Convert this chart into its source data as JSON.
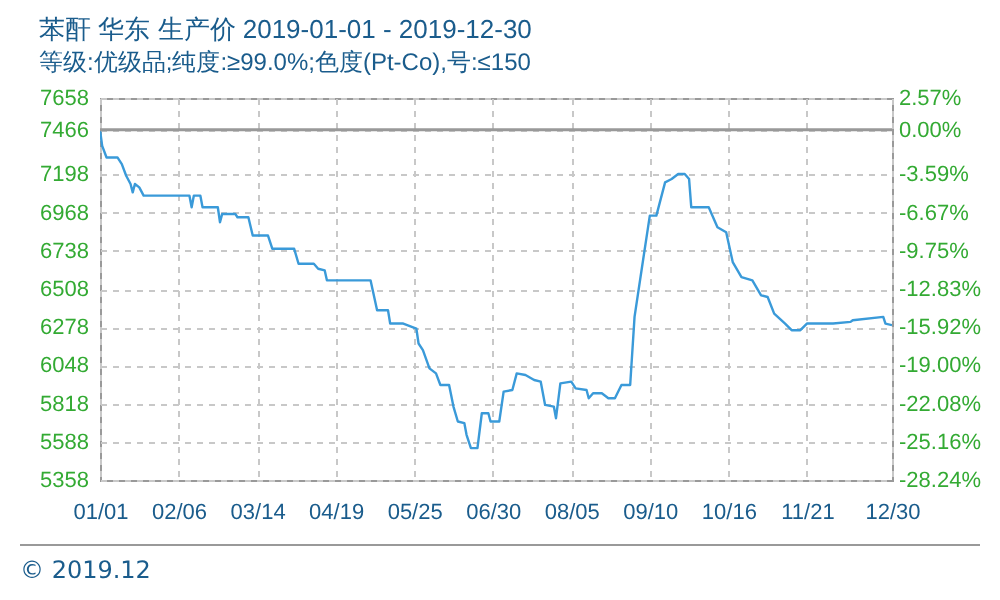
{
  "chart_data": {
    "type": "line",
    "title": "苯酐 华东 生产价 2019-01-01 - 2019-12-30",
    "subtitle": "等级:优级品;纯度:≥99.0%;色度(Pt-Co),号:≤150",
    "annotations": [
      "© 2019.12"
    ],
    "x": [
      "2019-01-01",
      "2019-01-02",
      "2019-01-04",
      "2019-01-09",
      "2019-01-11",
      "2019-01-13",
      "2019-01-15",
      "2019-01-16",
      "2019-01-17",
      "2019-01-19",
      "2019-01-21",
      "2019-02-11",
      "2019-02-12",
      "2019-02-13",
      "2019-02-16",
      "2019-02-17",
      "2019-02-24",
      "2019-02-25",
      "2019-02-26",
      "2019-03-04",
      "2019-03-05",
      "2019-03-10",
      "2019-03-12",
      "2019-03-19",
      "2019-03-21",
      "2019-03-31",
      "2019-04-02",
      "2019-04-09",
      "2019-04-11",
      "2019-04-14",
      "2019-04-15",
      "2019-05-05",
      "2019-05-06",
      "2019-05-08",
      "2019-05-13",
      "2019-05-14",
      "2019-05-20",
      "2019-05-26",
      "2019-05-27",
      "2019-05-29",
      "2019-06-01",
      "2019-06-04",
      "2019-06-06",
      "2019-06-10",
      "2019-06-12",
      "2019-06-14",
      "2019-06-17",
      "2019-06-18",
      "2019-06-20",
      "2019-06-23",
      "2019-06-25",
      "2019-06-28",
      "2019-06-29",
      "2019-07-03",
      "2019-07-05",
      "2019-07-09",
      "2019-07-11",
      "2019-07-15",
      "2019-07-19",
      "2019-07-22",
      "2019-07-24",
      "2019-07-28",
      "2019-07-29",
      "2019-07-31",
      "2019-08-05",
      "2019-08-07",
      "2019-08-12",
      "2019-08-13",
      "2019-08-15",
      "2019-08-19",
      "2019-08-22",
      "2019-08-25",
      "2019-08-28",
      "2019-09-01",
      "2019-09-03",
      "2019-09-07",
      "2019-09-10",
      "2019-09-13",
      "2019-09-17",
      "2019-09-20",
      "2019-09-23",
      "2019-09-26",
      "2019-09-28",
      "2019-09-29",
      "2019-10-07",
      "2019-10-11",
      "2019-10-15",
      "2019-10-18",
      "2019-10-22",
      "2019-10-27",
      "2019-10-31",
      "2019-11-03",
      "2019-11-06",
      "2019-11-11",
      "2019-11-14",
      "2019-11-18",
      "2019-11-21",
      "2019-12-03",
      "2019-12-11",
      "2019-12-12",
      "2019-12-26",
      "2019-12-27",
      "2019-12-30"
    ],
    "values": [
      7466,
      7370,
      7300,
      7300,
      7260,
      7190,
      7140,
      7090,
      7140,
      7120,
      7070,
      7070,
      7000,
      7070,
      7070,
      7000,
      7000,
      6910,
      6960,
      6960,
      6940,
      6940,
      6830,
      6830,
      6750,
      6750,
      6660,
      6660,
      6630,
      6620,
      6560,
      6560,
      6500,
      6380,
      6380,
      6300,
      6300,
      6270,
      6180,
      6140,
      6030,
      6000,
      5930,
      5930,
      5800,
      5710,
      5700,
      5630,
      5550,
      5550,
      5760,
      5760,
      5710,
      5710,
      5890,
      5900,
      6000,
      5990,
      5960,
      5950,
      5810,
      5800,
      5730,
      5940,
      5950,
      5910,
      5900,
      5850,
      5880,
      5880,
      5850,
      5850,
      5930,
      5930,
      6340,
      6690,
      6950,
      6950,
      7150,
      7170,
      7200,
      7200,
      7170,
      7000,
      7000,
      6880,
      6850,
      6670,
      6580,
      6560,
      6470,
      6460,
      6360,
      6300,
      6260,
      6260,
      6300,
      6300,
      6310,
      6320,
      6340,
      6300,
      6290
    ],
    "color": "#3a9ad9",
    "xlim": [
      "2019-01-01",
      "2019-12-30"
    ],
    "xticks": [
      {
        "value": "2019-01-01",
        "label": "01/01"
      },
      {
        "value": "2019-02-06",
        "label": "02/06"
      },
      {
        "value": "2019-03-14",
        "label": "03/14"
      },
      {
        "value": "2019-04-19",
        "label": "04/19"
      },
      {
        "value": "2019-05-25",
        "label": "05/25"
      },
      {
        "value": "2019-06-30",
        "label": "06/30"
      },
      {
        "value": "2019-08-05",
        "label": "08/05"
      },
      {
        "value": "2019-09-10",
        "label": "09/10"
      },
      {
        "value": "2019-10-16",
        "label": "10/16"
      },
      {
        "value": "2019-11-21",
        "label": "11/21"
      },
      {
        "value": "2019-12-30",
        "label": "12/30"
      }
    ],
    "ylim": [
      5358,
      7658
    ],
    "yticks": [
      5358,
      5588,
      5818,
      6048,
      6278,
      6508,
      6738,
      6968,
      7198,
      7466,
      7658
    ],
    "y2lim": [
      -28.24,
      2.57
    ],
    "y2ticks": [
      {
        "value": -28.24,
        "label": "-28.24%"
      },
      {
        "value": -25.16,
        "label": "-25.16%"
      },
      {
        "value": -22.08,
        "label": "-22.08%"
      },
      {
        "value": -19.0,
        "label": "-19.00%"
      },
      {
        "value": -15.92,
        "label": "-15.92%"
      },
      {
        "value": -12.83,
        "label": "-12.83%"
      },
      {
        "value": -9.75,
        "label": "-9.75%"
      },
      {
        "value": -6.67,
        "label": "-6.67%"
      },
      {
        "value": -3.59,
        "label": "-3.59%"
      },
      {
        "value": 0,
        "label": "0.00%"
      },
      {
        "value": 2.57,
        "label": "2.57%"
      }
    ],
    "ref_lines": [
      {
        "axis": "y2",
        "value": 0,
        "color": "#999999"
      }
    ],
    "grid": true
  }
}
